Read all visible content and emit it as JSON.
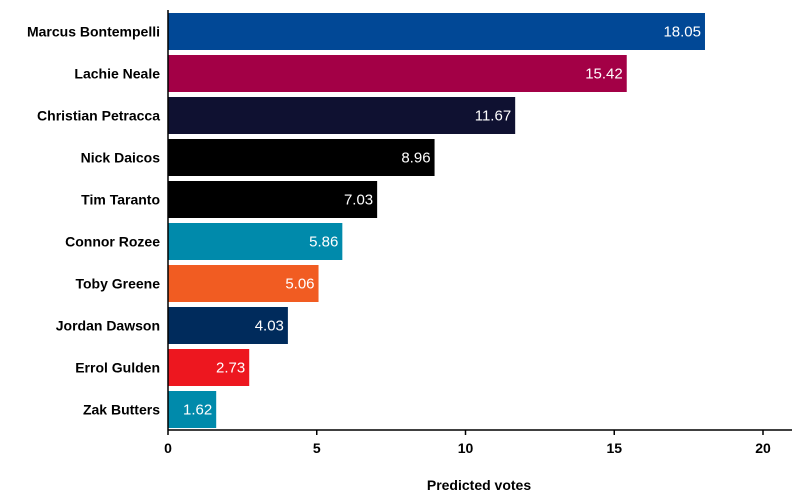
{
  "chart_data": {
    "type": "bar",
    "orientation": "horizontal",
    "categories": [
      "Marcus Bontempelli",
      "Lachie Neale",
      "Christian Petracca",
      "Nick Daicos",
      "Tim Taranto",
      "Connor Rozee",
      "Toby Greene",
      "Jordan Dawson",
      "Errol Gulden",
      "Zak Butters"
    ],
    "values": [
      18.05,
      15.42,
      11.67,
      8.96,
      7.03,
      5.86,
      5.06,
      4.03,
      2.73,
      1.62
    ],
    "value_labels": [
      "18.05",
      "15.42",
      "11.67",
      "8.96",
      "7.03",
      "5.86",
      "5.06",
      "4.03",
      "2.73",
      "1.62"
    ],
    "colors": [
      "#014896",
      "#A30046",
      "#0F1131",
      "#000000",
      "#000000",
      "#008AAB",
      "#F15C22",
      "#002B5C",
      "#ED171F",
      "#008AAB"
    ],
    "xlabel": "Predicted votes",
    "xlim": [
      0,
      20
    ],
    "xticks": [
      0,
      5,
      10,
      15,
      20
    ],
    "xtick_labels": [
      "0",
      "5",
      "10",
      "15",
      "20"
    ],
    "grid": false,
    "legend": "none"
  }
}
